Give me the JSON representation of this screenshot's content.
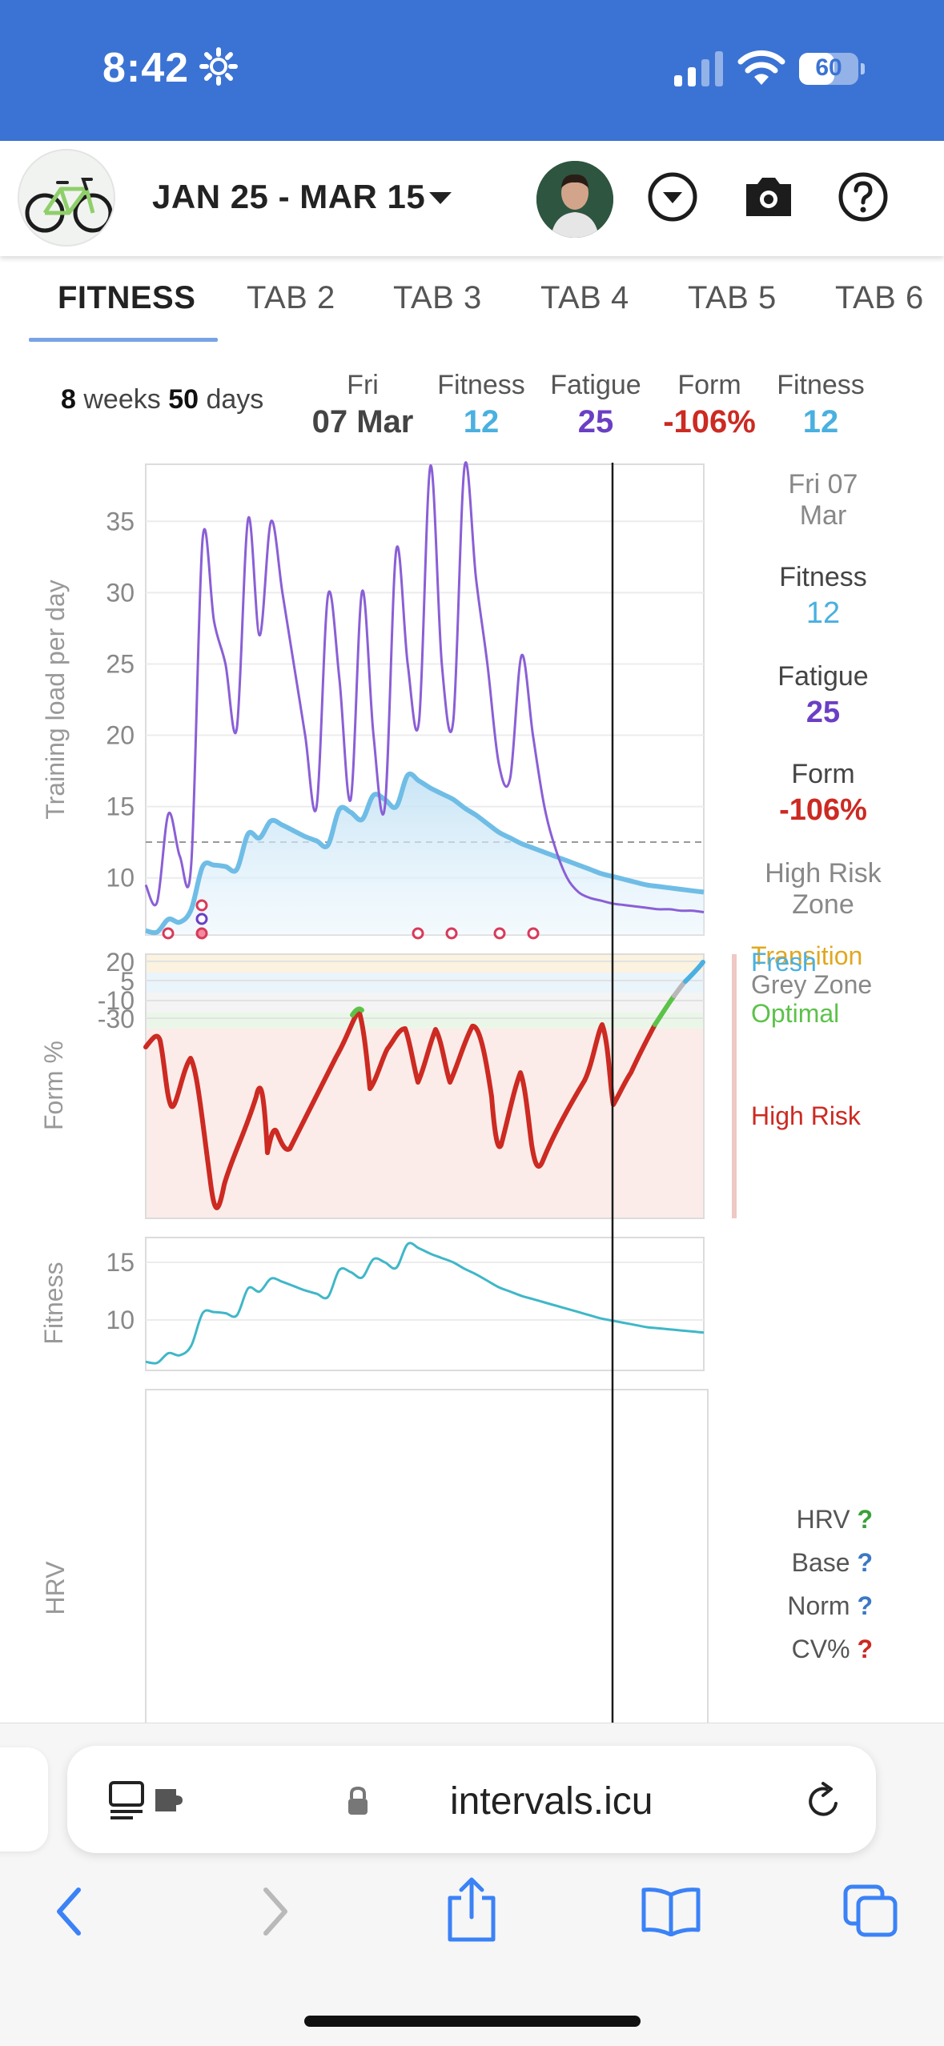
{
  "status": {
    "time": "8:42",
    "battery": 60
  },
  "header": {
    "date_range": "JAN 25 - MAR 15"
  },
  "tabs": [
    {
      "label": "FITNESS",
      "active": true
    },
    {
      "label": "TAB 2"
    },
    {
      "label": "TAB 3"
    },
    {
      "label": "TAB 4"
    },
    {
      "label": "TAB 5"
    },
    {
      "label": "TAB 6"
    }
  ],
  "summary": {
    "weeks_num": "8",
    "weeks_word": "weeks",
    "days_num": "50",
    "days_word": "days",
    "day_name": "Fri",
    "date": "07 Mar",
    "fitness_label": "Fitness",
    "fitness_value": "12",
    "fatigue_label": "Fatigue",
    "fatigue_value": "25",
    "form_label": "Form",
    "form_value": "-106%",
    "fitness2_label": "Fitness",
    "fitness2_value": "12"
  },
  "legend": {
    "date_line1": "Fri 07",
    "date_line2": "Mar",
    "fitness_label": "Fitness",
    "fitness_value": "12",
    "fatigue_label": "Fatigue",
    "fatigue_value": "25",
    "form_label": "Form",
    "form_value": "-106%",
    "risk_line1": "High Risk",
    "risk_line2": "Zone",
    "zone_transition": "Transition",
    "zone_fresh": "Fresh",
    "zone_grey": "Grey Zone",
    "zone_optimal": "Optimal",
    "zone_high_risk": "High Risk",
    "hrv": "HRV",
    "base": "Base",
    "norm": "Norm",
    "cv": "CV%",
    "q": "?"
  },
  "colors": {
    "fitness": "#4ab0e0",
    "fatigue": "#8a5fd6",
    "form": "#cc2a22",
    "optimal": "#5cc24a",
    "transition": "#e0a820",
    "fatigue_text": "#6a3fc4",
    "hrv_q": "#3aa03a",
    "base_q": "#3a78c4",
    "norm_q": "#3a78c4",
    "cv_q": "#cc2a22"
  },
  "browser": {
    "url": "intervals.icu"
  },
  "chart_data": [
    {
      "type": "line",
      "ylabel": "Training load per day",
      "ylim": [
        6,
        39
      ],
      "yticks": [
        "10",
        "15",
        "20",
        "25",
        "30",
        "35"
      ],
      "x": [
        0,
        1,
        2,
        3,
        4,
        5,
        6,
        7,
        8,
        9,
        10,
        11,
        12,
        13,
        14,
        15,
        16,
        17,
        18,
        19,
        20,
        21,
        22,
        23,
        24,
        25,
        26,
        27,
        28,
        29,
        30,
        31,
        32,
        33,
        34,
        35,
        36,
        37,
        38,
        39,
        40,
        41,
        42,
        43,
        44,
        45,
        46,
        47,
        48,
        49
      ],
      "series": [
        {
          "name": "Fitness",
          "values": [
            6.3,
            6.2,
            7.1,
            6.9,
            7.8,
            10.8,
            10.9,
            10.8,
            10.6,
            13.1,
            12.8,
            14.0,
            13.7,
            13.3,
            12.9,
            12.6,
            12.3,
            14.8,
            14.6,
            14.1,
            15.8,
            15.5,
            15.0,
            17.2,
            16.8,
            16.3,
            15.9,
            15.5,
            14.9,
            14.4,
            13.8,
            13.2,
            12.8,
            12.4,
            12.1,
            11.8,
            11.5,
            11.2,
            10.9,
            10.6,
            10.3,
            10.1,
            9.9,
            9.7,
            9.5,
            9.4,
            9.3,
            9.2,
            9.1,
            9.0
          ]
        },
        {
          "name": "Fatigue",
          "values": [
            9.5,
            8.3,
            14.5,
            11.5,
            11.0,
            33.8,
            28.0,
            25.0,
            20.5,
            35.2,
            27.0,
            35.0,
            30.0,
            25.0,
            20.0,
            15.0,
            29.8,
            24.0,
            15.5,
            30.1,
            20.0,
            15.0,
            33.0,
            25.0,
            21.0,
            38.9,
            25.0,
            21.0,
            38.9,
            31.0,
            25.0,
            18.0,
            17.0,
            25.6,
            20.0,
            15.0,
            12.0,
            10.0,
            9.0,
            8.6,
            8.4,
            8.2,
            8.1,
            8.0,
            7.9,
            7.8,
            7.8,
            7.7,
            7.7,
            7.6
          ]
        }
      ]
    },
    {
      "type": "line",
      "ylabel": "Form %",
      "yticks": [
        "20",
        "5",
        "-10",
        "-30"
      ],
      "zones": [
        "Transition",
        "Fresh",
        "Grey Zone",
        "Optimal",
        "High Risk"
      ]
    },
    {
      "type": "line",
      "ylabel": "Fitness",
      "yticks": [
        "15",
        "10"
      ]
    },
    {
      "type": "line",
      "ylabel": "HRV"
    }
  ]
}
